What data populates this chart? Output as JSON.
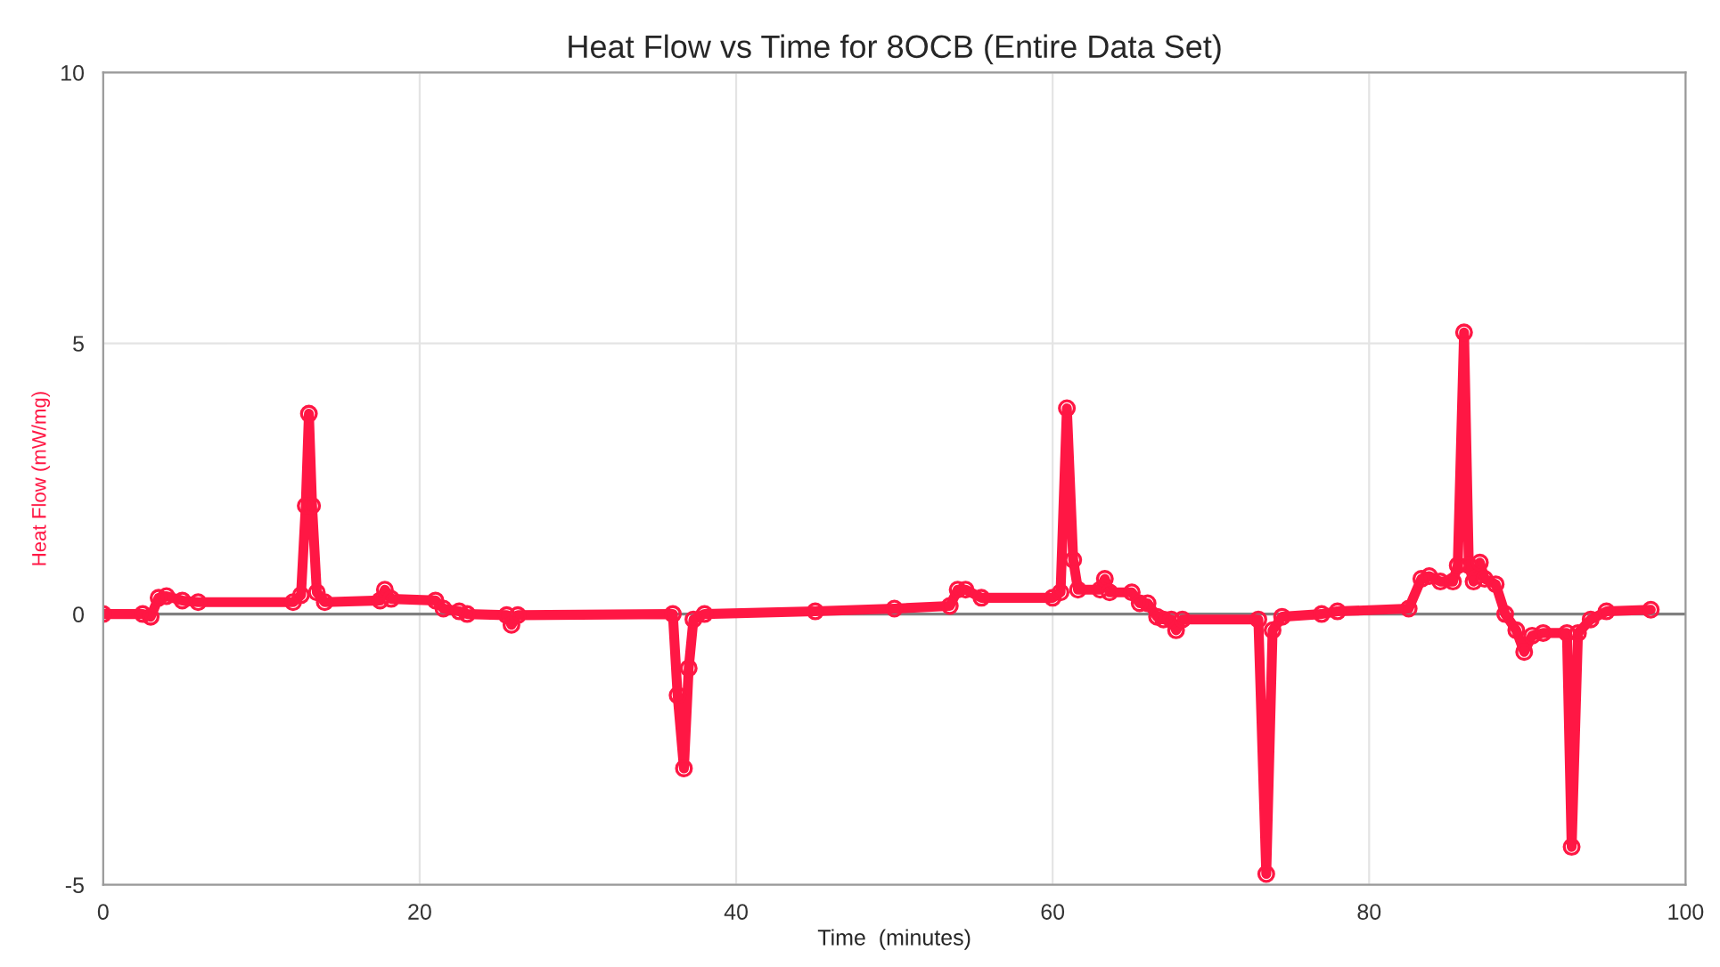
{
  "chart_data": {
    "type": "line",
    "title": "Heat Flow vs Time for 8OCB (Entire Data Set)",
    "xlabel": "Time  (minutes)",
    "ylabel": "Heat Flow (mW/mg)",
    "xlim": [
      0,
      100
    ],
    "ylim": [
      -5,
      10
    ],
    "xticks": [
      0,
      20,
      40,
      60,
      80,
      100
    ],
    "yticks": [
      -5,
      0,
      5,
      10
    ],
    "grid": true,
    "marker": "circle",
    "line_style": "solid",
    "ref_lines": [
      {
        "axis": "y",
        "value": 0,
        "color": "#808080"
      }
    ],
    "series": [
      {
        "color": "#ff1744",
        "x": [
          0,
          2.5,
          3.0,
          3.5,
          4,
          5,
          6,
          12,
          12.5,
          12.8,
          13.0,
          13.2,
          13.5,
          14,
          17.5,
          17.8,
          18.2,
          21,
          21.5,
          22.5,
          23,
          25.5,
          25.8,
          26.2,
          36,
          36.3,
          36.7,
          37.0,
          37.3,
          38,
          45,
          50,
          53.5,
          54,
          54.5,
          55.5,
          60,
          60.5,
          60.9,
          61.3,
          61.6,
          63,
          63.3,
          63.6,
          65,
          65.5,
          66,
          66.6,
          67,
          67.5,
          67.8,
          68.2,
          73,
          73.5,
          73.9,
          74.5,
          77,
          78,
          82.5,
          83.3,
          83.8,
          84.5,
          85.3,
          85.6,
          86.0,
          86.3,
          86.6,
          87,
          87.3,
          88.0,
          88.6,
          89.3,
          89.8,
          90.3,
          91,
          92.5,
          92.8,
          93.2,
          94,
          95,
          97.8
        ],
        "values": [
          0.0,
          0.0,
          -0.05,
          0.3,
          0.33,
          0.25,
          0.22,
          0.22,
          0.35,
          2,
          3.7,
          2,
          0.4,
          0.22,
          0.25,
          0.45,
          0.28,
          0.25,
          0.1,
          0.05,
          0.0,
          -0.02,
          -0.2,
          -0.02,
          0.0,
          -1.5,
          -2.85,
          -1.0,
          -0.1,
          0.0,
          0.05,
          0.1,
          0.15,
          0.45,
          0.45,
          0.3,
          0.3,
          0.4,
          3.8,
          1.0,
          0.45,
          0.45,
          0.65,
          0.4,
          0.4,
          0.2,
          0.2,
          -0.05,
          -0.1,
          -0.1,
          -0.3,
          -0.1,
          -0.1,
          -4.8,
          -0.3,
          -0.05,
          0.0,
          0.05,
          0.1,
          0.65,
          0.7,
          0.6,
          0.6,
          0.9,
          5.2,
          0.9,
          0.6,
          0.95,
          0.65,
          0.55,
          0.0,
          -0.3,
          -0.7,
          -0.4,
          -0.35,
          -0.35,
          -4.3,
          -0.35,
          -0.1,
          0.05,
          0.08
        ]
      }
    ]
  }
}
